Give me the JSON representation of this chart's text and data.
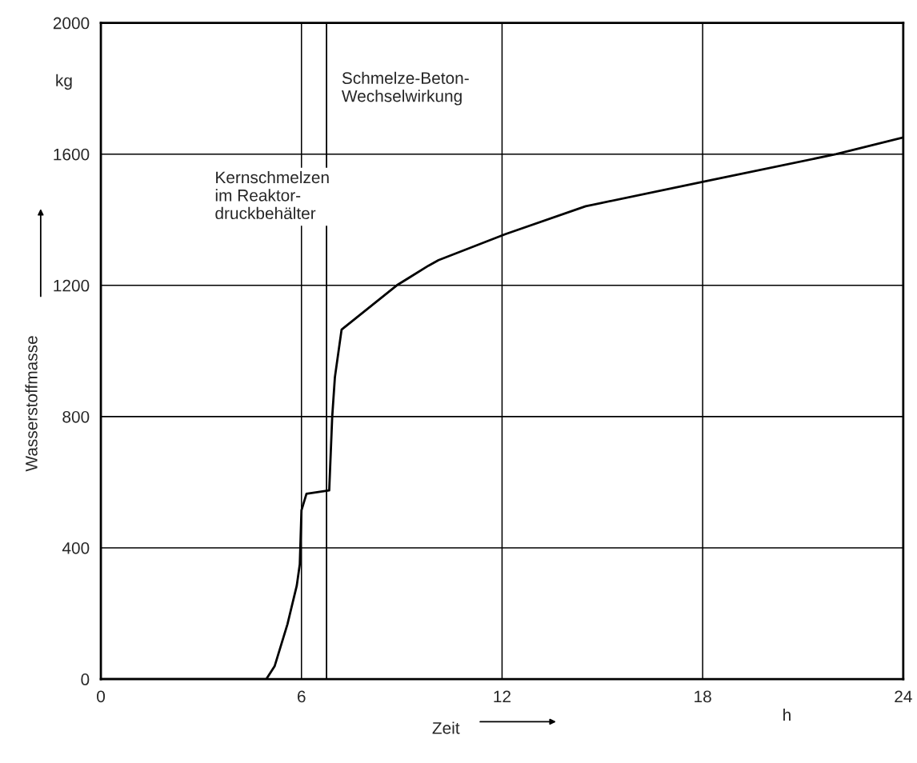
{
  "chart_data": {
    "type": "line",
    "xlabel": "Zeit",
    "ylabel": "Wasserstoffmasse",
    "x": [
      0,
      4.95,
      5.2,
      5.58,
      5.86,
      5.95,
      6.0,
      6.15,
      6.83,
      6.92,
      7.0,
      7.2,
      8.85,
      9.8,
      10.1,
      12.1,
      14.5,
      18.2,
      22.0,
      24
    ],
    "series": [
      {
        "color": "#000000",
        "values": [
          0,
          0,
          40,
          167,
          285,
          350,
          514,
          565,
          575,
          800,
          920,
          1065,
          1200,
          1260,
          1277,
          1356,
          1441,
          1520,
          1600,
          1651
        ]
      }
    ],
    "xlim": [
      0,
      24
    ],
    "ylim": [
      0,
      2000
    ],
    "xticks": [
      0,
      6,
      12,
      18,
      24
    ],
    "yticks": [
      0,
      400,
      800,
      1200,
      1600,
      2000
    ],
    "grid": true,
    "marker": "none",
    "line_style": "solid",
    "ref_lines": [
      {
        "axis": "x",
        "value": 6.75,
        "color": "#000000"
      }
    ],
    "annotations": [
      "Kernschmelzen\nim Reaktor-\ndruckbehälter",
      "Schmelze-Beton-\nWechselwirkung",
      "kg",
      "h"
    ]
  }
}
